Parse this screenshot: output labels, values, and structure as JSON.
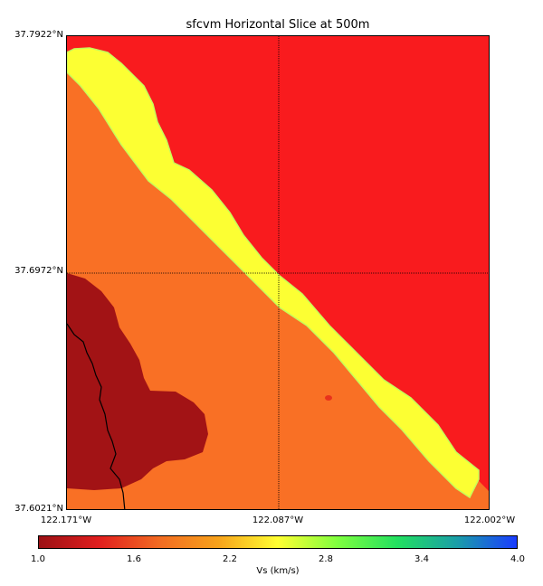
{
  "title": "sfcvm Horizontal Slice at 500m",
  "axes": {
    "lat_labels": [
      "37.7922°N",
      "37.6972°N",
      "37.6021°N"
    ],
    "lon_labels": [
      "122.171°W",
      "122.087°W",
      "122.002°W"
    ]
  },
  "colorbar": {
    "label": "Vs (km/s)",
    "ticks": [
      "1.0",
      "1.6",
      "2.2",
      "2.8",
      "3.4",
      "4.0"
    ],
    "range": [
      1.0,
      4.0
    ],
    "colors": [
      "#9b1115",
      "#e01e1e",
      "#f26a22",
      "#f7a21b",
      "#ffff33",
      "#7fff3f",
      "#22e060",
      "#1a9ea8",
      "#1a3cff"
    ]
  },
  "map": {
    "zones": [
      {
        "name": "high-velocity region",
        "vs": 1.6,
        "color": "#f91b1e"
      },
      {
        "name": "basin sediment region",
        "vs": 2.0,
        "color": "#f97025"
      },
      {
        "name": "fault zone band",
        "vs": 2.6,
        "color": "#fcff33"
      },
      {
        "name": "low-velocity basin",
        "vs": 1.1,
        "color": "#a21315"
      }
    ],
    "grid": "dotted at center lat/lon"
  }
}
